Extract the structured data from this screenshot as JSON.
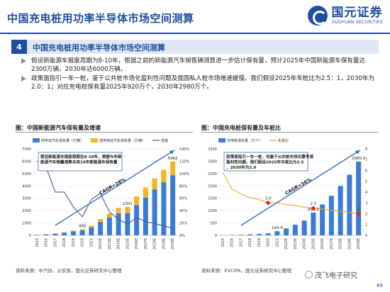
{
  "header": {
    "title": "中国充电桩用功率半导体市场空间测算",
    "logo_cn": "国元证券",
    "logo_en": "GUOYUAN SECURITIES"
  },
  "section": {
    "number": "4",
    "title": "中国充电桩用功率半导体市场空间测算"
  },
  "bullets": [
    "假设新能源车报废周期为8-10年，根据之前的新能源汽车销售辆测算进一步估计保有量，预计2025年中国新能源车保有量达2300万辆，2030年达6000万辆。",
    "政策面指引一车一桩，鉴于公共桩市场化盈利性问题及我国私人桩市场增速缓慢。我们假设2025年车桩比为2.5：1，2030年为2.0：1；对应充电桩保有量2025年920万个，2030年2980万个。"
  ],
  "colors": {
    "accent": "#1f4e9e",
    "bar_blue": "#3a7bd5",
    "bar_orange": "#f5b324",
    "line_gray": "#4a5a8a",
    "line_orange": "#f5a623",
    "marker_red": "#e8251f"
  },
  "left_figure": {
    "caption": "图：中国新能源汽车保有量及增速",
    "source": "资料来源：中汽协，公安部，国元证券研究中心整理"
  },
  "right_figure": {
    "caption": "图：中国充电桩保有量及车桩比",
    "source": "资料来源：EVCIPA，国元证券研究中心整理"
  },
  "watermark": "茂飞电子研究",
  "page_number": "69",
  "chart_data": [
    {
      "type": "bar",
      "categories": [
        "2015",
        "2016",
        "2017",
        "2018",
        "2019",
        "2020",
        "2021",
        "2022E",
        "2023E",
        "2024E",
        "2025E",
        "2026E",
        "2027E",
        "2028E",
        "2029E",
        "2030E"
      ],
      "series": [
        {
          "name": "纯电动汽车保有量（万辆）",
          "kind": "bar-stacked",
          "values": [
            33,
            74,
            125,
            211,
            310,
            400,
            640,
            1080,
            1450,
            1790,
            1800,
            2450,
            3050,
            3700,
            4300,
            4850
          ]
        },
        {
          "name": "插电电动汽车保有量（万辆）",
          "kind": "bar-stacked",
          "values": [
            9,
            17,
            28,
            50,
            71,
            95,
            144,
            230,
            330,
            430,
            501,
            700,
            820,
            900,
            1000,
            1112
          ]
        },
        {
          "name": "增速",
          "kind": "line",
          "axis": "right",
          "values": [
            120,
            110,
            70,
            70,
            46,
            30,
            58,
            68,
            38,
            26,
            18,
            29,
            22,
            19,
            15,
            12
          ]
        }
      ],
      "ylim": [
        0,
        7000
      ],
      "yticks": [
        0,
        1000,
        2000,
        3000,
        4000,
        5000,
        6000,
        7000
      ],
      "y2lim": [
        0,
        140
      ],
      "y2ticks": [
        "0%",
        "20%",
        "40%",
        "60%",
        "80%",
        "100%",
        "120%",
        "140%"
      ],
      "data_labels": [
        {
          "index": 5,
          "text": "495"
        },
        {
          "index": 10,
          "text": "2301"
        },
        {
          "index": 15,
          "text": "5962"
        }
      ],
      "annotation": "假设新能源车报废周期在8-10年，根据与年新能源汽车销量测算未来10年新能源车保有量",
      "trend_label": "CAGR=28%",
      "legend_position": "top"
    },
    {
      "type": "bar",
      "categories": [
        "2015",
        "2016",
        "2017",
        "2018",
        "2019",
        "2020",
        "2021",
        "2022E",
        "2023E",
        "2024E",
        "2025E",
        "2026E",
        "2027E",
        "2028E",
        "2029E",
        "2030E"
      ],
      "series": [
        {
          "name": "充电桩保有量（万个）",
          "kind": "bar",
          "values": [
            5,
            15,
            21,
            39,
            52,
            80,
            165,
            280,
            430,
            600,
            920,
            1250,
            1600,
            2000,
            2450,
            2980
          ]
        },
        {
          "name": "车桩比",
          "kind": "line",
          "axis": "right",
          "values": [
            5.8,
            4.3,
            3.8,
            3.5,
            3.3,
            3.0,
            3.0,
            2.85,
            2.75,
            2.6,
            2.5,
            2.42,
            2.32,
            2.22,
            2.1,
            2.0
          ]
        }
      ],
      "ylim": [
        0,
        3500
      ],
      "yticks": [
        0,
        500,
        1000,
        1500,
        2000,
        2500,
        3000,
        3500
      ],
      "y2lim": [
        0,
        8
      ],
      "y2ticks": [
        "0",
        "1",
        "2",
        "3",
        "4",
        "5",
        "6",
        "7",
        "8"
      ],
      "data_labels": [
        {
          "index": 6,
          "text": "164.9"
        },
        {
          "index": 10,
          "text": "920.2"
        },
        {
          "index": 15,
          "text": "2980.9"
        }
      ],
      "line_labels": [
        {
          "index": 5,
          "text": "3.0"
        },
        {
          "index": 10,
          "text": "2.5"
        },
        {
          "index": 15,
          "text": "2"
        }
      ],
      "annotation": "政策面指引一车一桩，但鉴于公共桩市场化需考虑盈利性问题，我们假设2025年车桩比为2.5，2030年为2.0",
      "trend_label": "CAGR=34%",
      "legend_position": "top"
    }
  ]
}
